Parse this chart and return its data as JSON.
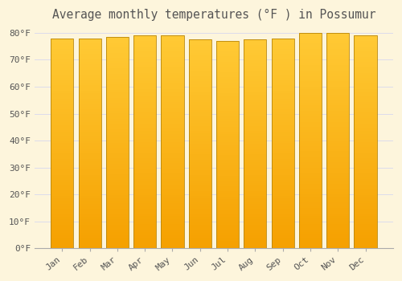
{
  "title": "Average monthly temperatures (°F ) in Possumur",
  "months": [
    "Jan",
    "Feb",
    "Mar",
    "Apr",
    "May",
    "Jun",
    "Jul",
    "Aug",
    "Sep",
    "Oct",
    "Nov",
    "Dec"
  ],
  "values": [
    78,
    78,
    78.5,
    79,
    79,
    77.5,
    77,
    77.5,
    78,
    80,
    80,
    79
  ],
  "bar_color_top": "#FFCA35",
  "bar_color_bottom": "#F5A000",
  "bar_edge_color": "#B8860B",
  "background_color": "#FDF5DC",
  "plot_bg_color": "#FDF5DC",
  "grid_color": "#DCDCEC",
  "text_color": "#555555",
  "ylim_max": 82,
  "ytick_step": 10,
  "title_fontsize": 10.5,
  "tick_fontsize": 8,
  "bar_width": 0.82,
  "figsize": [
    5.0,
    3.5
  ],
  "dpi": 100
}
